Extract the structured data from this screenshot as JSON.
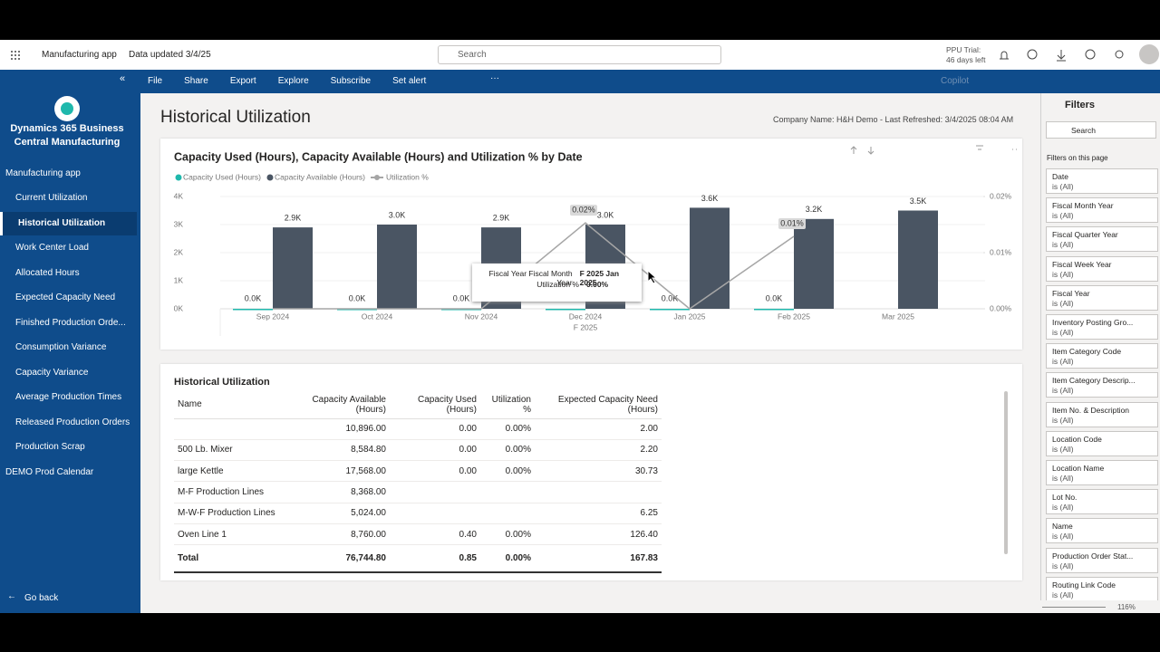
{
  "topbar": {
    "app": "Manufacturing app",
    "data_updated": "Data updated 3/4/25",
    "search": "Search",
    "trial": "PPU Trial:",
    "trial_days": "46 days left"
  },
  "ribbon": {
    "items": [
      "File",
      "Share",
      "Export",
      "Explore",
      "Subscribe",
      "Set alert"
    ],
    "copilot": "Copilot"
  },
  "nav": {
    "title": "Dynamics 365 Business Central Manufacturing",
    "section": "Manufacturing app",
    "items": [
      "Current Utilization",
      "Historical Utilization",
      "Work Center Load",
      "Allocated Hours",
      "Expected Capacity Need",
      "Finished Production Orde...",
      "Consumption Variance",
      "Capacity Variance",
      "Average Production Times",
      "Released Production Orders",
      "Production Scrap"
    ],
    "section2": "DEMO Prod Calendar",
    "back": "Go back"
  },
  "page": {
    "title": "Historical Utilization",
    "company": "Company Name: H&H Demo - Last Refreshed: 3/4/2025 08:04 AM"
  },
  "chart_data": {
    "type": "bar",
    "title": "Capacity Used (Hours), Capacity Available (Hours) and Utilization % by Date",
    "categories": [
      "Sep 2024",
      "Oct 2024",
      "Nov 2024",
      "Dec 2024",
      "Jan 2025",
      "Feb 2025",
      "Mar 2025"
    ],
    "x_group_label": "F 2025",
    "series": [
      {
        "name": "Capacity Used (Hours)",
        "color": "#1fb8ac",
        "values": [
          0,
          0,
          0,
          0.4,
          0,
          0.45,
          null
        ],
        "value_labels": [
          "0.0K",
          "0.0K",
          "0.0K",
          null,
          "0.0K",
          "0.0K",
          null
        ]
      },
      {
        "name": "Capacity Available (Hours)",
        "color": "#4a5563",
        "values": [
          2900,
          3000,
          2900,
          3000,
          3600,
          3200,
          3500
        ],
        "value_labels": [
          "2.9K",
          "3.0K",
          "2.9K",
          "3.0K",
          "3.6K",
          "3.2K",
          "3.5K"
        ]
      },
      {
        "name": "Utilization %",
        "color": "#a6a6a6",
        "type": "line",
        "axis": "y2",
        "values": [
          0,
          0,
          0,
          0.0153,
          0,
          0.0129,
          null
        ],
        "value_labels": [
          null,
          null,
          null,
          "0.02%",
          null,
          "0.01%",
          null
        ]
      }
    ],
    "ylim": [
      0,
      4000
    ],
    "yticks": [
      {
        "value": 0,
        "label": "0K"
      },
      {
        "value": 1000,
        "label": "1K"
      },
      {
        "value": 2000,
        "label": "2K"
      },
      {
        "value": 3000,
        "label": "3K"
      },
      {
        "value": 4000,
        "label": "4K"
      }
    ],
    "y2lim": [
      0,
      0.02
    ],
    "y2ticks": [
      {
        "value": 0,
        "label": "0.00%"
      },
      {
        "value": 0.01,
        "label": "0.01%"
      },
      {
        "value": 0.02,
        "label": "0.02%"
      }
    ],
    "grid": true,
    "tooltip": {
      "rows": [
        [
          "Fiscal Year Fiscal Month Year",
          "F 2025 Jan 2025"
        ],
        [
          "Utilization %",
          "0.00%"
        ]
      ]
    }
  },
  "table": {
    "title": "Historical Utilization",
    "columns": [
      "Name",
      "Capacity Available (Hours)",
      "Capacity Used (Hours)",
      "Utilization %",
      "Expected Capacity Need (Hours)"
    ],
    "rows": [
      [
        null,
        "10,896.00",
        "0.00",
        "0.00%",
        "2.00"
      ],
      [
        "500 Lb. Mixer",
        "8,584.80",
        "0.00",
        "0.00%",
        "2.20"
      ],
      [
        "large Kettle",
        "17,568.00",
        "0.00",
        "0.00%",
        "30.73"
      ],
      [
        "M-F Production Lines",
        "8,368.00",
        null,
        null,
        null
      ],
      [
        "M-W-F Production Lines",
        "5,024.00",
        null,
        null,
        "6.25"
      ],
      [
        "Oven Line 1",
        "8,760.00",
        "0.40",
        "0.00%",
        "126.40"
      ]
    ],
    "total": [
      "Total",
      "76,744.80",
      "0.85",
      "0.00%",
      "167.83"
    ]
  },
  "filters": {
    "title": "Filters",
    "search": "Search",
    "section": "Filters on this page",
    "items": [
      {
        "name": "Date",
        "state": "is (All)"
      },
      {
        "name": "Fiscal Month Year",
        "state": "is (All)"
      },
      {
        "name": "Fiscal Quarter Year",
        "state": "is (All)"
      },
      {
        "name": "Fiscal Week Year",
        "state": "is (All)"
      },
      {
        "name": "Fiscal Year",
        "state": "is (All)"
      },
      {
        "name": "Inventory Posting Gro...",
        "state": "is (All)"
      },
      {
        "name": "Item Category Code",
        "state": "is (All)"
      },
      {
        "name": "Item Category Descrip...",
        "state": "is (All)"
      },
      {
        "name": "Item No. & Description",
        "state": "is (All)"
      },
      {
        "name": "Location Code",
        "state": "is (All)"
      },
      {
        "name": "Location Name",
        "state": "is (All)"
      },
      {
        "name": "Lot No.",
        "state": "is (All)"
      },
      {
        "name": "Name",
        "state": "is (All)"
      },
      {
        "name": "Production Order Stat...",
        "state": "is (All)"
      },
      {
        "name": "Routing Link Code",
        "state": "is (All)"
      }
    ]
  },
  "status": {
    "zoom": "116%"
  }
}
